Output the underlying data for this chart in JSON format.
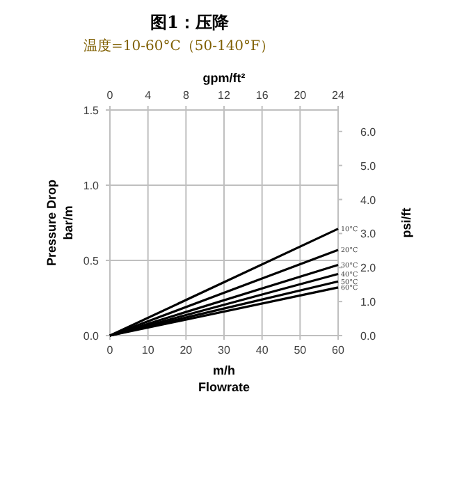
{
  "chart_data": {
    "type": "line",
    "title": "图1：压降",
    "subtitle": "温度=10-60°C（50-140°F）",
    "xlabel": "m/h\nFlowrate",
    "ylabel": "Pressure Drop\nbar/m",
    "x2label": "gpm/ft²",
    "y2label": "psi/ft",
    "x": [
      0,
      60
    ],
    "series": [
      {
        "name": "10°C",
        "color": "#000000",
        "values": [
          0,
          0.71
        ]
      },
      {
        "name": "20°C",
        "color": "#000000",
        "values": [
          0,
          0.57
        ]
      },
      {
        "name": "30°C",
        "color": "#000000",
        "values": [
          0,
          0.47
        ]
      },
      {
        "name": "40°C",
        "color": "#000000",
        "values": [
          0,
          0.41
        ]
      },
      {
        "name": "50°C",
        "color": "#000000",
        "values": [
          0,
          0.36
        ]
      },
      {
        "name": "60°C",
        "color": "#000000",
        "values": [
          0,
          0.32
        ]
      }
    ],
    "xlim": [
      0,
      60
    ],
    "xticks": [
      0,
      10,
      20,
      30,
      40,
      50,
      60
    ],
    "ylim": [
      0,
      1.5
    ],
    "yticks": [
      {
        "value": 0,
        "label": "0.0"
      },
      {
        "value": 0.5,
        "label": "0.5"
      },
      {
        "value": 1.0,
        "label": "1.0"
      },
      {
        "value": 1.5,
        "label": "1.5"
      }
    ],
    "x2lim": [
      0,
      24
    ],
    "x2ticks": [
      0,
      4,
      8,
      12,
      16,
      20,
      24
    ],
    "y2lim": [
      0,
      6.63
    ],
    "y2ticks": [
      {
        "value": 0,
        "label": "0.0"
      },
      {
        "value": 1,
        "label": "1.0"
      },
      {
        "value": 2,
        "label": "2.0"
      },
      {
        "value": 3,
        "label": "3.0"
      },
      {
        "value": 4,
        "label": "4.0"
      },
      {
        "value": 5,
        "label": "5.0"
      },
      {
        "value": 6,
        "label": "6.0"
      }
    ],
    "grid": true,
    "marker": "none",
    "line_style": "solid"
  }
}
